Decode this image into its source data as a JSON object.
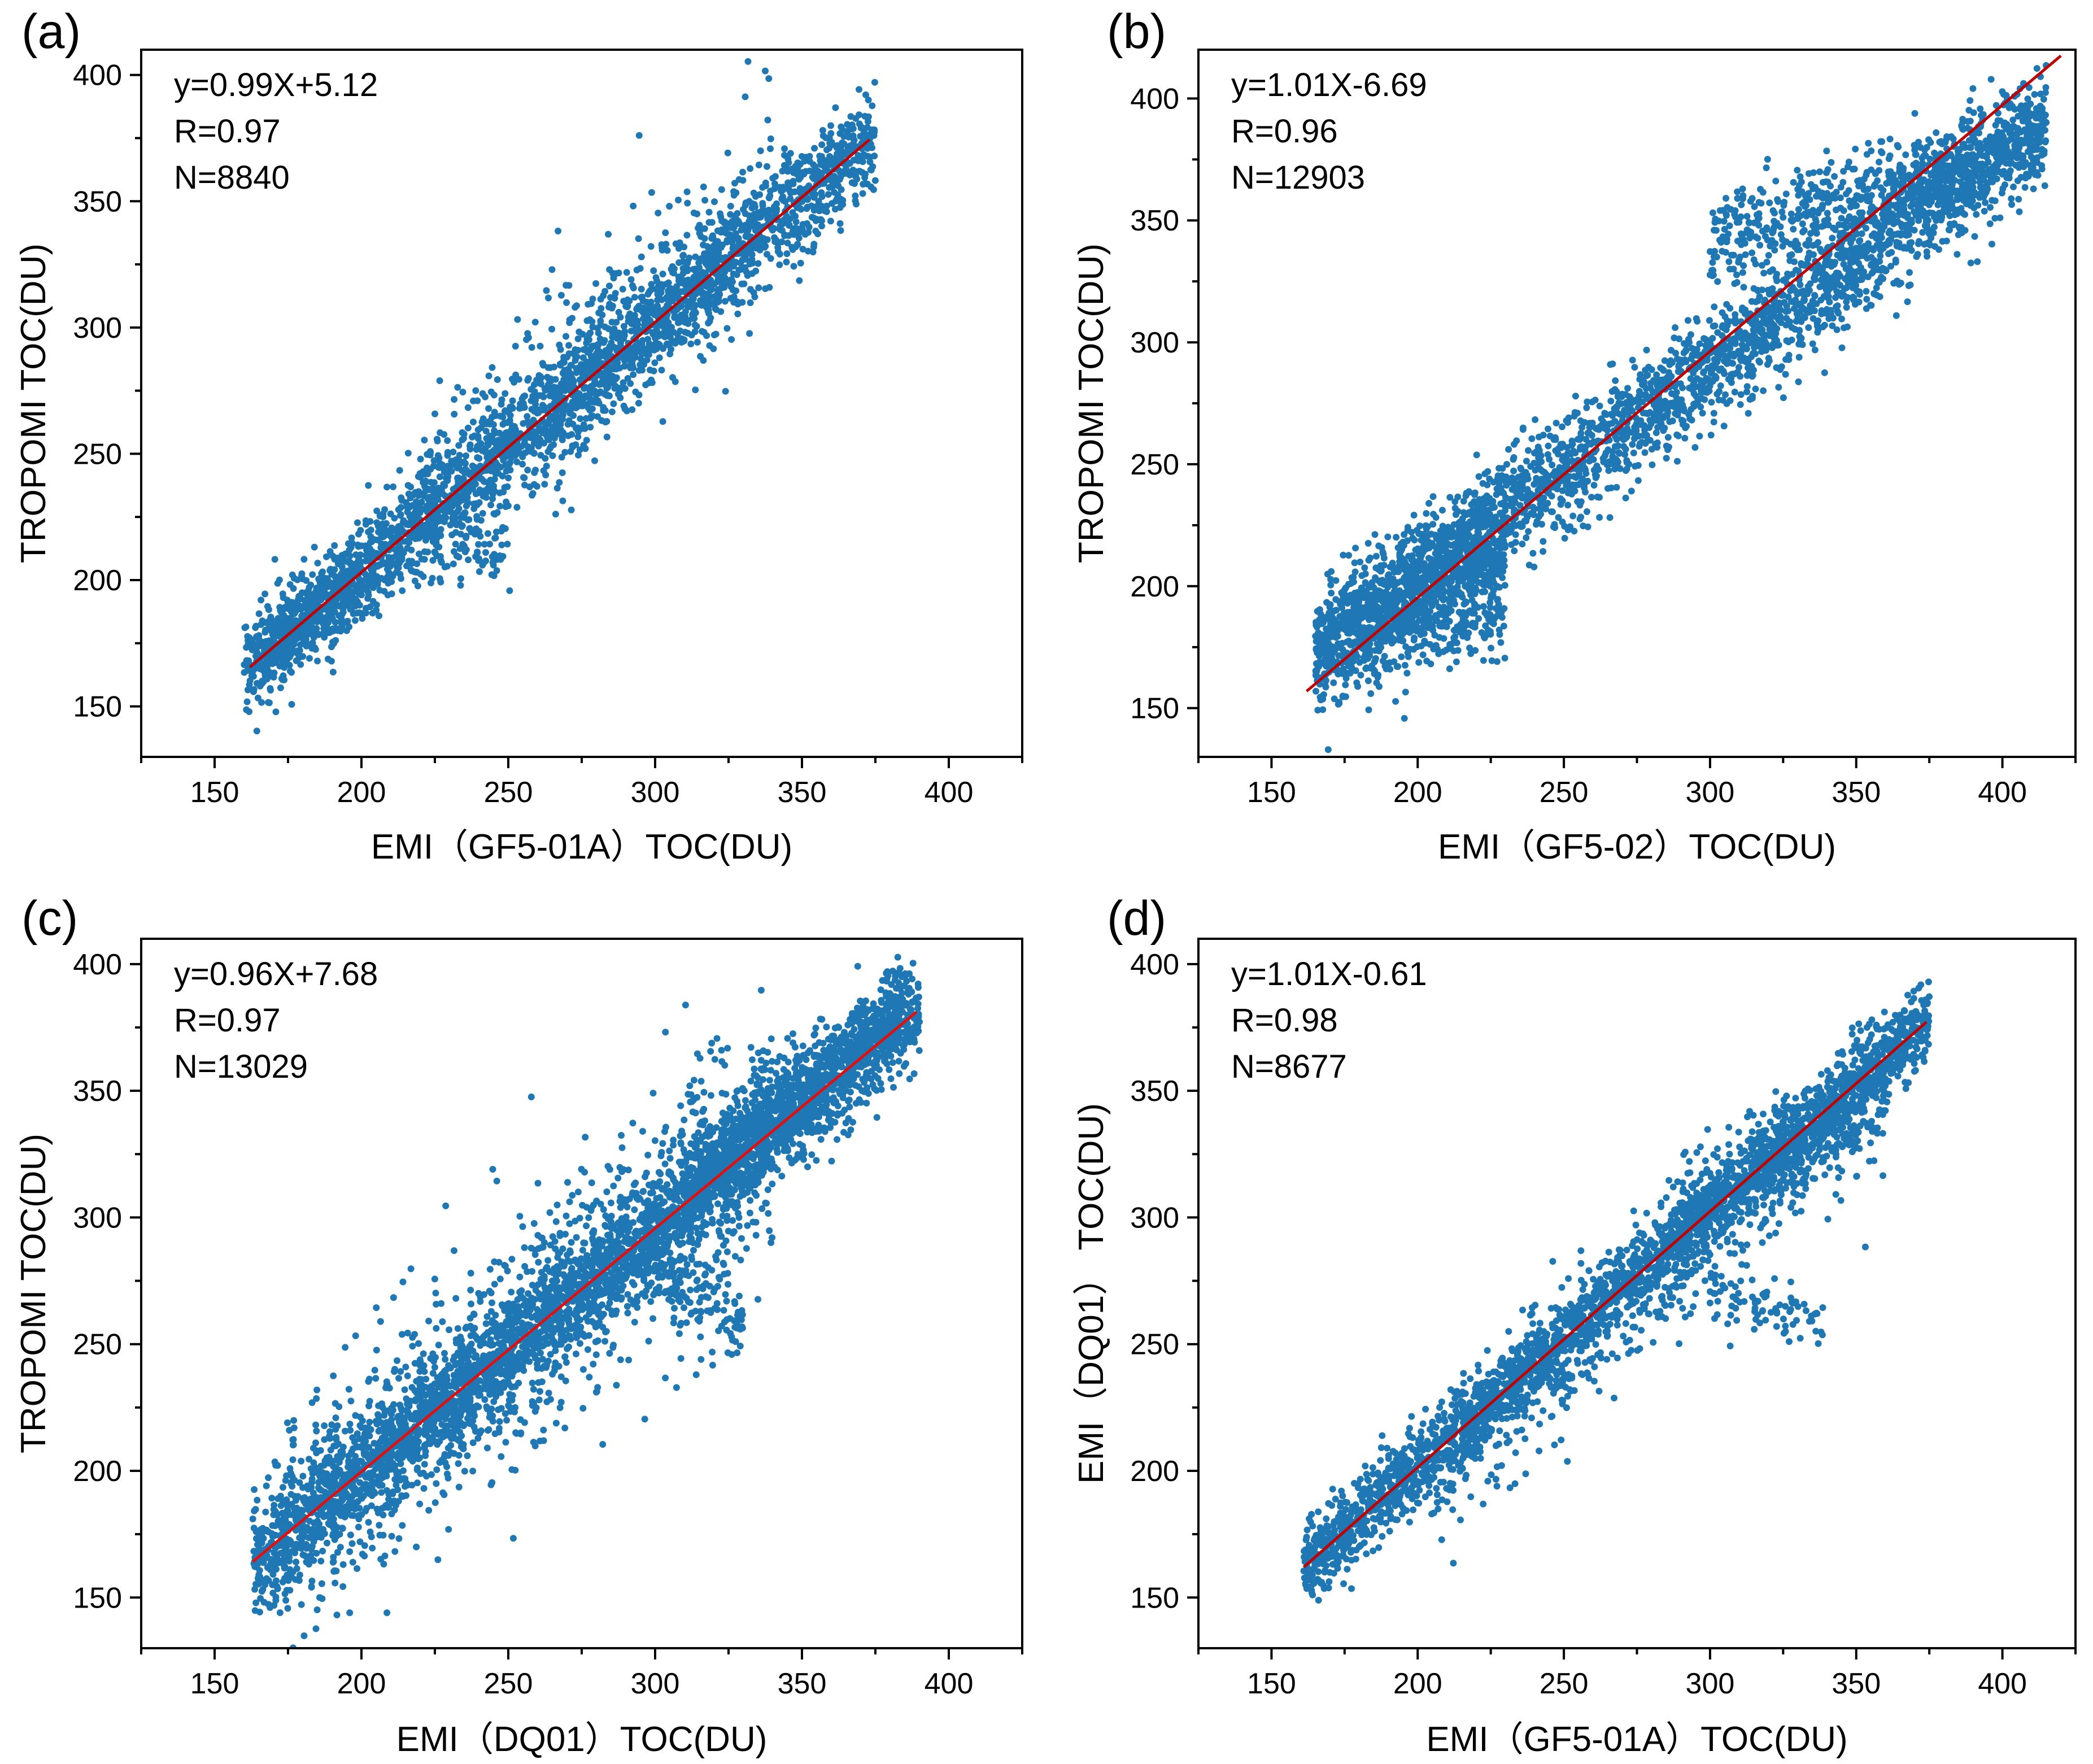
{
  "chart_data": [
    {
      "type": "scatter",
      "panel_label": "(a)",
      "xlabel": "EMI（GF5-01A）TOC(DU)",
      "ylabel": "TROPOMI TOC(DU)",
      "xlim": [
        125,
        425
      ],
      "ylim": [
        130,
        410
      ],
      "xticks": [
        150,
        200,
        250,
        300,
        350,
        400
      ],
      "yticks": [
        150,
        200,
        250,
        300,
        350,
        400
      ],
      "stats": [
        "y=0.99X+5.12",
        "R=0.97",
        "N=8840"
      ],
      "fit": {
        "slope": 0.99,
        "intercept": 5.12,
        "x_range": [
          162,
          373
        ]
      },
      "point_color": "#1f77b4",
      "line_color": "#c00000",
      "scatter_clusters": [
        {
          "x": [
            160,
            375
          ],
          "slope": 0.99,
          "intercept": 5.12,
          "spread": 10,
          "n": 2600
        },
        {
          "x": [
            215,
            340
          ],
          "slope": 0.99,
          "intercept": 12,
          "spread": 20,
          "n": 500
        },
        {
          "x": [
            225,
            250
          ],
          "slope": 0.0,
          "intercept": 210,
          "spread": 6,
          "n": 60
        },
        {
          "x": [
            165,
            200
          ],
          "slope": 0.99,
          "intercept": 5.12,
          "spread": 6,
          "n": 300
        }
      ]
    },
    {
      "type": "scatter",
      "panel_label": "(b)",
      "xlabel": "EMI（GF5-02）TOC(DU)",
      "ylabel": "TROPOMI TOC(DU)",
      "xlim": [
        125,
        425
      ],
      "ylim": [
        130,
        420
      ],
      "xticks": [
        150,
        200,
        250,
        300,
        350,
        400
      ],
      "yticks": [
        150,
        200,
        250,
        300,
        350,
        400
      ],
      "stats": [
        "y=1.01X-6.69",
        "R=0.96",
        "N=12903"
      ],
      "fit": {
        "slope": 1.01,
        "intercept": -6.69,
        "x_range": [
          162,
          420
        ]
      },
      "point_color": "#1f77b4",
      "line_color": "#c00000",
      "scatter_clusters": [
        {
          "x": [
            165,
            415
          ],
          "slope": 0.86,
          "intercept": 32,
          "spread": 11,
          "n": 2800
        },
        {
          "x": [
            165,
            230
          ],
          "slope": 0.7,
          "intercept": 55,
          "spread": 13,
          "n": 700
        },
        {
          "x": [
            300,
            415
          ],
          "slope": 0.4,
          "intercept": 220,
          "spread": 10,
          "n": 600
        },
        {
          "x": [
            175,
            230
          ],
          "slope": 0.0,
          "intercept": 185,
          "spread": 8,
          "n": 200
        }
      ]
    },
    {
      "type": "scatter",
      "panel_label": "(c)",
      "xlabel": "EMI（DQ01）TOC(DU)",
      "ylabel": "TROPOMI TOC(DU)",
      "xlim": [
        125,
        425
      ],
      "ylim": [
        130,
        410
      ],
      "xticks": [
        150,
        200,
        250,
        300,
        350,
        400
      ],
      "yticks": [
        150,
        200,
        250,
        300,
        350,
        400
      ],
      "stats": [
        "y=0.96X+7.68",
        "R=0.97",
        "N=13029"
      ],
      "fit": {
        "slope": 0.96,
        "intercept": 7.68,
        "x_range": [
          163,
          389
        ]
      },
      "point_color": "#1f77b4",
      "line_color": "#e01010",
      "scatter_clusters": [
        {
          "x": [
            163,
            390
          ],
          "slope": 0.96,
          "intercept": 7.68,
          "spread": 10,
          "n": 3000
        },
        {
          "x": [
            170,
            340
          ],
          "slope": 0.96,
          "intercept": 7.68,
          "spread": 24,
          "n": 1300
        },
        {
          "x": [
            300,
            330
          ],
          "slope": -0.8,
          "intercept": 520,
          "spread": 8,
          "n": 120
        },
        {
          "x": [
            310,
            385
          ],
          "slope": 0.96,
          "intercept": 14,
          "spread": 9,
          "n": 700
        }
      ]
    },
    {
      "type": "scatter",
      "panel_label": "(d)",
      "xlabel": "EMI（GF5-01A）TOC(DU)",
      "ylabel": "EMI（DQ01） TOC(DU)",
      "xlim": [
        125,
        425
      ],
      "ylim": [
        130,
        410
      ],
      "xticks": [
        150,
        200,
        250,
        300,
        350,
        400
      ],
      "yticks": [
        150,
        200,
        250,
        300,
        350,
        400
      ],
      "stats": [
        "y=1.01X-0.61",
        "R=0.98",
        "N=8677"
      ],
      "fit": {
        "slope": 1.01,
        "intercept": -0.61,
        "x_range": [
          161,
          374
        ]
      },
      "point_color": "#1f77b4",
      "line_color": "#c00000",
      "scatter_clusters": [
        {
          "x": [
            161,
            375
          ],
          "slope": 1.01,
          "intercept": -0.61,
          "spread": 8,
          "n": 2600
        },
        {
          "x": [
            205,
            360
          ],
          "slope": 1.01,
          "intercept": -10,
          "spread": 16,
          "n": 500
        },
        {
          "x": [
            300,
            340
          ],
          "slope": -0.3,
          "intercept": 360,
          "spread": 6,
          "n": 80
        },
        {
          "x": [
            290,
            360
          ],
          "slope": 0.6,
          "intercept": 130,
          "spread": 10,
          "n": 300
        }
      ]
    }
  ]
}
